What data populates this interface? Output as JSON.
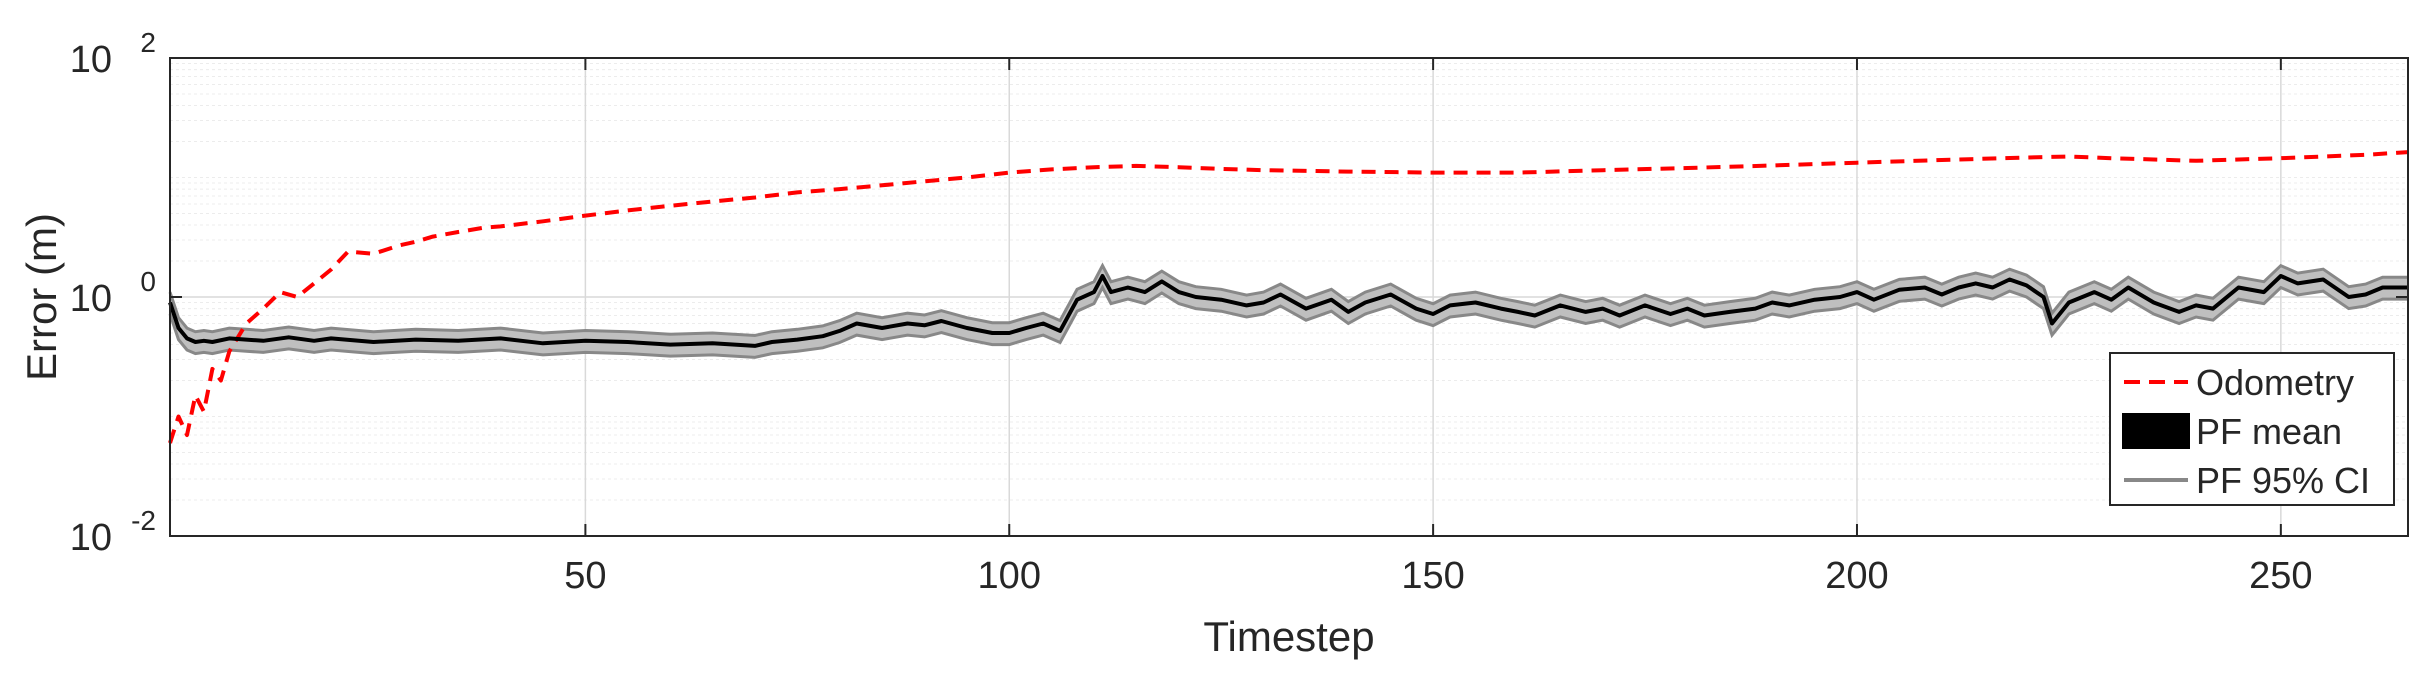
{
  "chart_data": {
    "type": "line",
    "title": "",
    "xlabel": "Timestep",
    "ylabel": "Error (m)",
    "xlim": [
      1,
      265
    ],
    "ylim": [
      0.01,
      100
    ],
    "yscale": "log",
    "grid": true,
    "minor_grid": true,
    "legend_position": "lower-right",
    "x_ticks": [
      50,
      100,
      150,
      200,
      250
    ],
    "x_tick_labels": [
      "50",
      "100",
      "150",
      "200",
      "250"
    ],
    "y_ticks": [
      0.01,
      1,
      100
    ],
    "y_tick_labels": [
      {
        "base": "10",
        "exp": "-2"
      },
      {
        "base": "10",
        "exp": "0"
      },
      {
        "base": "10",
        "exp": "2"
      }
    ],
    "legend": [
      {
        "label": "Odometry",
        "marker": "dashed-line",
        "color": "#ff0000"
      },
      {
        "label": "PF mean",
        "marker": "filled-box",
        "color": "#000000"
      },
      {
        "label": "PF 95% CI",
        "marker": "solid-line",
        "color": "#888888"
      }
    ],
    "series": [
      {
        "name": "Odometry",
        "style": "dashed",
        "color": "#ff0000",
        "x": [
          1,
          2,
          3,
          4,
          5,
          6,
          7,
          8,
          10,
          12,
          14,
          16,
          18,
          20,
          22,
          25,
          28,
          30,
          32,
          35,
          38,
          40,
          45,
          50,
          55,
          60,
          65,
          70,
          75,
          80,
          85,
          90,
          95,
          100,
          105,
          110,
          115,
          120,
          125,
          130,
          140,
          150,
          160,
          170,
          180,
          190,
          200,
          210,
          220,
          225,
          230,
          240,
          250,
          260,
          265
        ],
        "y": [
          0.06,
          0.1,
          0.07,
          0.15,
          0.11,
          0.25,
          0.2,
          0.35,
          0.6,
          0.8,
          1.1,
          1.0,
          1.3,
          1.7,
          2.4,
          2.3,
          2.7,
          2.9,
          3.2,
          3.5,
          3.8,
          3.9,
          4.3,
          4.8,
          5.3,
          5.8,
          6.3,
          6.8,
          7.5,
          8.0,
          8.6,
          9.3,
          10.0,
          11.0,
          11.7,
          12.2,
          12.5,
          12.2,
          11.8,
          11.5,
          11.2,
          11.0,
          11.0,
          11.5,
          12.0,
          12.6,
          13.3,
          14.0,
          14.7,
          15.0,
          14.5,
          13.8,
          14.5,
          15.5,
          16.3
        ]
      },
      {
        "name": "PF mean",
        "style": "solid",
        "color": "#000000",
        "x": [
          1,
          2,
          3,
          4,
          5,
          6,
          8,
          10,
          12,
          15,
          18,
          20,
          25,
          30,
          35,
          40,
          45,
          50,
          55,
          60,
          65,
          70,
          72,
          75,
          78,
          80,
          82,
          85,
          88,
          90,
          92,
          95,
          98,
          100,
          102,
          104,
          106,
          108,
          110,
          111,
          112,
          114,
          116,
          118,
          120,
          122,
          125,
          128,
          130,
          132,
          135,
          138,
          140,
          142,
          145,
          148,
          150,
          152,
          155,
          158,
          160,
          162,
          165,
          168,
          170,
          172,
          175,
          178,
          180,
          182,
          185,
          188,
          190,
          192,
          195,
          198,
          200,
          202,
          205,
          208,
          210,
          212,
          214,
          216,
          218,
          220,
          222,
          223,
          225,
          228,
          230,
          232,
          235,
          238,
          240,
          242,
          245,
          248,
          250,
          252,
          255,
          258,
          260,
          262,
          265
        ],
        "y": [
          0.9,
          0.55,
          0.45,
          0.42,
          0.43,
          0.42,
          0.45,
          0.44,
          0.43,
          0.46,
          0.43,
          0.45,
          0.42,
          0.44,
          0.43,
          0.45,
          0.41,
          0.43,
          0.42,
          0.4,
          0.41,
          0.39,
          0.42,
          0.44,
          0.47,
          0.52,
          0.6,
          0.55,
          0.6,
          0.58,
          0.63,
          0.55,
          0.5,
          0.5,
          0.55,
          0.6,
          0.52,
          0.95,
          1.1,
          1.5,
          1.1,
          1.2,
          1.1,
          1.35,
          1.1,
          1.0,
          0.95,
          0.85,
          0.9,
          1.05,
          0.8,
          0.95,
          0.75,
          0.9,
          1.05,
          0.8,
          0.72,
          0.85,
          0.9,
          0.8,
          0.75,
          0.7,
          0.85,
          0.75,
          0.8,
          0.7,
          0.85,
          0.72,
          0.8,
          0.7,
          0.75,
          0.8,
          0.9,
          0.85,
          0.95,
          1.0,
          1.1,
          0.95,
          1.15,
          1.2,
          1.05,
          1.2,
          1.3,
          1.2,
          1.4,
          1.25,
          1.0,
          0.6,
          0.9,
          1.1,
          0.95,
          1.2,
          0.9,
          0.75,
          0.85,
          0.8,
          1.2,
          1.1,
          1.5,
          1.3,
          1.4,
          1.0,
          1.05,
          1.2,
          1.2
        ]
      }
    ],
    "ci_band": {
      "name": "PF 95% CI",
      "color": "#888888",
      "fill": "#bfbfbf",
      "lower_factor": 0.8,
      "upper_factor": 1.22
    }
  }
}
